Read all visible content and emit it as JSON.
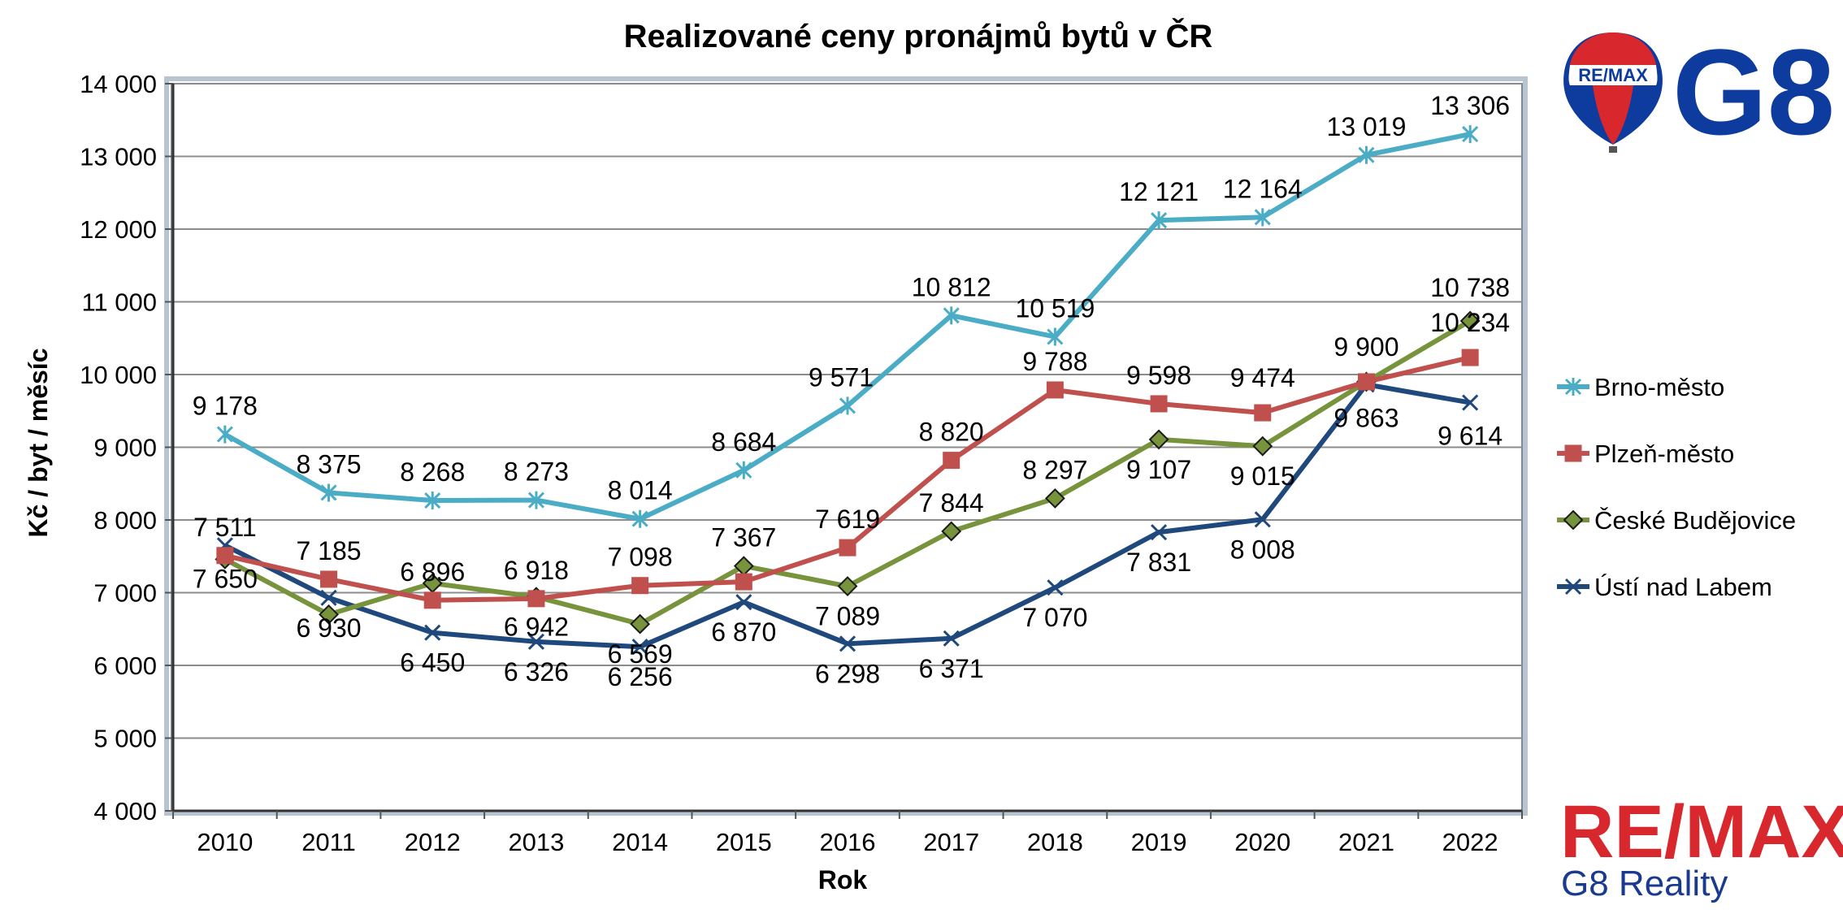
{
  "chart_data": {
    "type": "line",
    "title": "Realizované ceny pronájmů bytů v ČR",
    "xlabel": "Rok",
    "ylabel": "Kč / byt / měsíc",
    "x": [
      "2010",
      "2011",
      "2012",
      "2013",
      "2014",
      "2015",
      "2016",
      "2017",
      "2018",
      "2019",
      "2020",
      "2021",
      "2022"
    ],
    "ylim": [
      4000,
      14000
    ],
    "yticks": [
      4000,
      5000,
      6000,
      7000,
      8000,
      9000,
      10000,
      11000,
      12000,
      13000,
      14000
    ],
    "ytick_labels": [
      "4 000",
      "5 000",
      "6 000",
      "7 000",
      "8 000",
      "9 000",
      "10 000",
      "11 000",
      "12 000",
      "13 000",
      "14 000"
    ],
    "grid": true,
    "legend_position": "right",
    "series": [
      {
        "name": "Brno-město",
        "color": "#4bacc6",
        "marker": "asterisk",
        "values": [
          9178,
          8375,
          8268,
          8273,
          8014,
          8684,
          9571,
          10812,
          10519,
          12121,
          12164,
          13019,
          13306
        ],
        "labels": [
          "9 178",
          "8 375",
          "8 268",
          "8 273",
          "8 014",
          "8 684",
          "9 571",
          "10 812",
          "10 519",
          "12 121",
          "12 164",
          "13 019",
          "13 306"
        ]
      },
      {
        "name": "Plzeň-město",
        "color": "#c0504d",
        "marker": "square",
        "values": [
          7511,
          7185,
          6896,
          6918,
          7098,
          7150,
          7619,
          8820,
          9788,
          9598,
          9474,
          9900,
          10234
        ],
        "labels": [
          "7 511",
          "7 185",
          "6 896",
          "6 918",
          "7 098",
          "",
          "7 619",
          "8 820",
          "9 788",
          "9 598",
          "9 474",
          "9 900",
          "10 234"
        ]
      },
      {
        "name": "České Budějovice",
        "color": "#77933c",
        "marker": "diamond",
        "values": [
          7460,
          6700,
          7130,
          6942,
          6569,
          7367,
          7089,
          7844,
          8297,
          9107,
          9015,
          9900,
          10738
        ],
        "labels": [
          "",
          "",
          "",
          "6 942",
          "6 569",
          "7 367",
          "7 089",
          "7 844",
          "8 297",
          "9 107",
          "9 015",
          "",
          "10 738"
        ]
      },
      {
        "name": "Ústí nad Labem",
        "color": "#1f497d",
        "marker": "x",
        "values": [
          7650,
          6930,
          6450,
          6326,
          6256,
          6870,
          6298,
          6371,
          7070,
          7831,
          8008,
          9863,
          9614
        ],
        "labels": [
          "7 650",
          "6 930",
          "6 450",
          "6 326",
          "6 256",
          "6 870",
          "6 298",
          "6 371",
          "7 070",
          "7 831",
          "8 008",
          "9 863",
          "9 614"
        ]
      }
    ]
  },
  "logos": {
    "balloon_text": "RE/MAX",
    "g8_text": "G8",
    "remax_word": "RE/MAX",
    "remax_sub": "G8 Reality",
    "colors": {
      "red": "#d9272e",
      "blue": "#0d3b9e"
    }
  }
}
